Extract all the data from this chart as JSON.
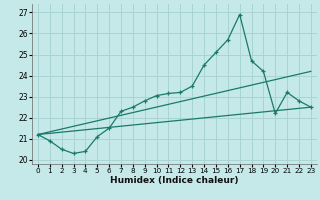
{
  "title": "",
  "xlabel": "Humidex (Indice chaleur)",
  "background_color": "#c5e8e8",
  "grid_color": "#aad4d4",
  "line_color": "#1a7a6a",
  "xlim": [
    -0.5,
    23.5
  ],
  "ylim": [
    19.8,
    27.4
  ],
  "yticks": [
    20,
    21,
    22,
    23,
    24,
    25,
    26,
    27
  ],
  "xticks": [
    0,
    1,
    2,
    3,
    4,
    5,
    6,
    7,
    8,
    9,
    10,
    11,
    12,
    13,
    14,
    15,
    16,
    17,
    18,
    19,
    20,
    21,
    22,
    23
  ],
  "series": [
    {
      "x": [
        0,
        1,
        2,
        3,
        4,
        5,
        6,
        7,
        8,
        9,
        10,
        11,
        12,
        13,
        14,
        15,
        16,
        17,
        18,
        19,
        20,
        21,
        22,
        23
      ],
      "y": [
        21.2,
        20.9,
        20.5,
        20.3,
        20.4,
        21.1,
        21.5,
        22.3,
        22.5,
        22.8,
        23.05,
        23.15,
        23.2,
        23.5,
        24.5,
        25.1,
        25.7,
        26.9,
        24.7,
        24.2,
        22.2,
        23.2,
        22.8,
        22.5
      ],
      "marker": true
    },
    {
      "x": [
        0,
        23
      ],
      "y": [
        21.2,
        22.5
      ],
      "marker": false
    },
    {
      "x": [
        0,
        23
      ],
      "y": [
        21.2,
        24.2
      ],
      "marker": false
    }
  ]
}
